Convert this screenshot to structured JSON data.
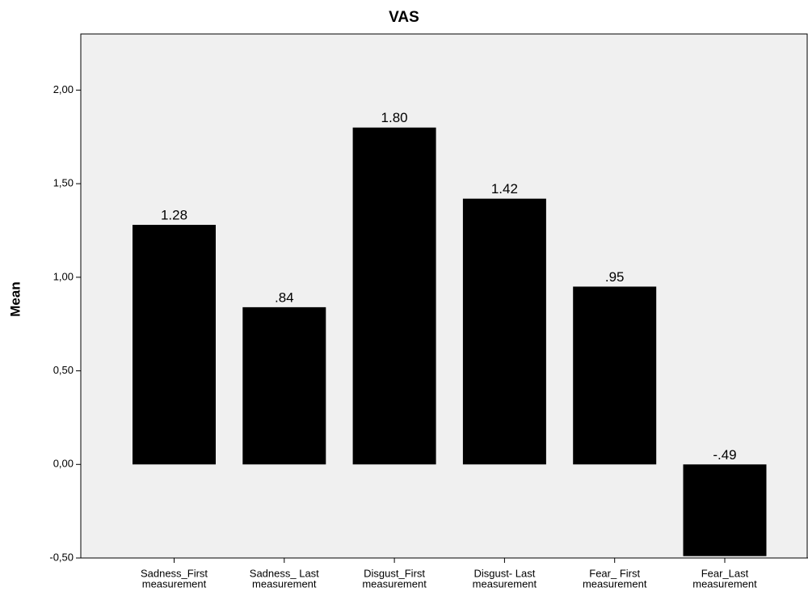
{
  "chart_data": {
    "type": "bar",
    "title": "VAS",
    "y_label": "Mean",
    "categories": [
      [
        "Sadness_First",
        "measurement"
      ],
      [
        "Sadness_ Last",
        "measurement"
      ],
      [
        "Disgust_First",
        "measurement"
      ],
      [
        "Disgust- Last",
        "measurement"
      ],
      [
        "Fear_ First",
        "measurement"
      ],
      [
        "Fear_Last",
        "measurement"
      ]
    ],
    "values": [
      1.28,
      0.84,
      1.8,
      1.42,
      0.95,
      -0.49
    ],
    "value_labels": [
      "1.28",
      ".84",
      "1.80",
      "1.42",
      ".95",
      "-.49"
    ],
    "color": "#000000",
    "ylim": [
      -0.5,
      2.3
    ],
    "yticks": [
      {
        "value": -0.5,
        "label": "-0,50"
      },
      {
        "value": 0,
        "label": "0,00"
      },
      {
        "value": 0.5,
        "label": "0,50"
      },
      {
        "value": 1,
        "label": "1,00"
      },
      {
        "value": 1.5,
        "label": "1,50"
      },
      {
        "value": 2,
        "label": "2,00"
      }
    ],
    "grid": false
  }
}
